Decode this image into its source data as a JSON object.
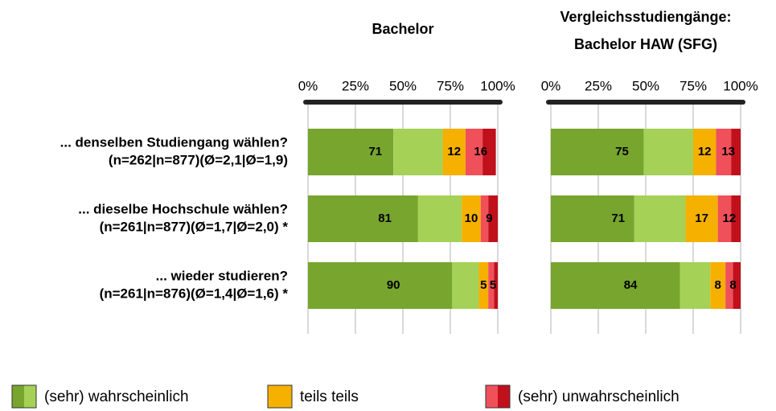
{
  "chart_data": {
    "type": "bar",
    "orientation": "horizontal",
    "stacked": true,
    "categories": [
      [
        "... denselben Studiengang wählen?",
        "(n=262|n=877)(Ø=2,1|Ø=1,9)"
      ],
      [
        "... dieselbe Hochschule wählen?",
        "(n=261|n=877)(Ø=1,7|Ø=2,0) *"
      ],
      [
        "... wieder studieren?",
        "(n=261|n=876)(Ø=1,4|Ø=1,6) *"
      ]
    ],
    "xlim": [
      0,
      100
    ],
    "xticks": [
      {
        "value": 0,
        "label": "0%"
      },
      {
        "value": 25,
        "label": "25%"
      },
      {
        "value": 50,
        "label": "50%"
      },
      {
        "value": 75,
        "label": "75%"
      },
      {
        "value": 100,
        "label": "100%"
      }
    ],
    "grid": true,
    "legend_position": "bottom",
    "legend": [
      {
        "name": "(sehr) wahrscheinlich",
        "colors": [
          "#77a52e",
          "#a5d157"
        ]
      },
      {
        "name": "teils teils",
        "colors": [
          "#f5b000"
        ]
      },
      {
        "name": "(sehr) unwahrscheinlich",
        "colors": [
          "#f0505a",
          "#c0101c"
        ]
      }
    ],
    "panels": [
      {
        "title": [
          "Bachelor"
        ],
        "series": [
          {
            "values": [
              71,
              81,
              90
            ],
            "parts": [
              [
                45,
                26
              ],
              [
                58,
                23
              ],
              [
                76,
                14
              ]
            ]
          },
          {
            "values": [
              12,
              10,
              5
            ],
            "parts": [
              [
                12
              ],
              [
                10
              ],
              [
                5
              ]
            ]
          },
          {
            "values": [
              16,
              9,
              5
            ],
            "parts": [
              [
                9,
                7
              ],
              [
                4,
                5
              ],
              [
                3,
                2
              ]
            ]
          }
        ]
      },
      {
        "title": [
          "Vergleichsstudiengänge:",
          "Bachelor HAW (SFG)"
        ],
        "series": [
          {
            "values": [
              75,
              71,
              84
            ],
            "parts": [
              [
                49,
                26
              ],
              [
                44,
                27
              ],
              [
                68,
                16
              ]
            ]
          },
          {
            "values": [
              12,
              17,
              8
            ],
            "parts": [
              [
                12
              ],
              [
                17
              ],
              [
                8
              ]
            ]
          },
          {
            "values": [
              13,
              12,
              8
            ],
            "parts": [
              [
                8,
                5
              ],
              [
                7,
                5
              ],
              [
                4,
                4
              ]
            ]
          }
        ]
      }
    ]
  }
}
